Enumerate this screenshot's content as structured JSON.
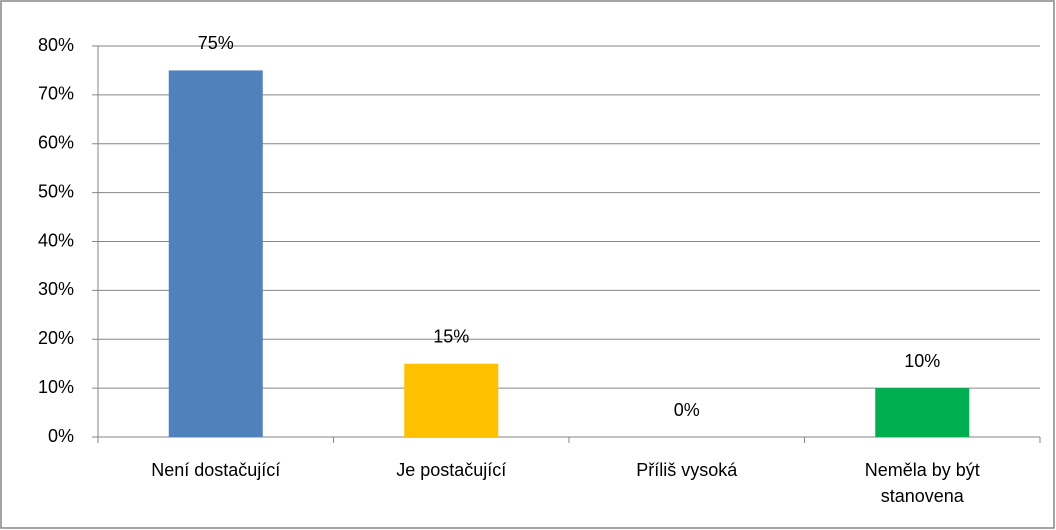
{
  "chart_data": {
    "type": "bar",
    "categories": [
      "Není dostačující",
      "Je postačující",
      "Příliš vysoká",
      "Neměla by být stanovena"
    ],
    "values": [
      75,
      15,
      0,
      10
    ],
    "value_labels": [
      "75%",
      "15%",
      "0%",
      "10%"
    ],
    "colors": [
      "#4f81bd",
      "#ffc000",
      "#9bbb59",
      "#00b050"
    ],
    "ylim": [
      0,
      80
    ],
    "yticks": [
      {
        "value": 0,
        "label": "0%"
      },
      {
        "value": 10,
        "label": "10%"
      },
      {
        "value": 20,
        "label": "20%"
      },
      {
        "value": 30,
        "label": "30%"
      },
      {
        "value": 40,
        "label": "40%"
      },
      {
        "value": 50,
        "label": "50%"
      },
      {
        "value": 60,
        "label": "60%"
      },
      {
        "value": 70,
        "label": "70%"
      },
      {
        "value": 80,
        "label": "80%"
      }
    ],
    "grid": true
  }
}
